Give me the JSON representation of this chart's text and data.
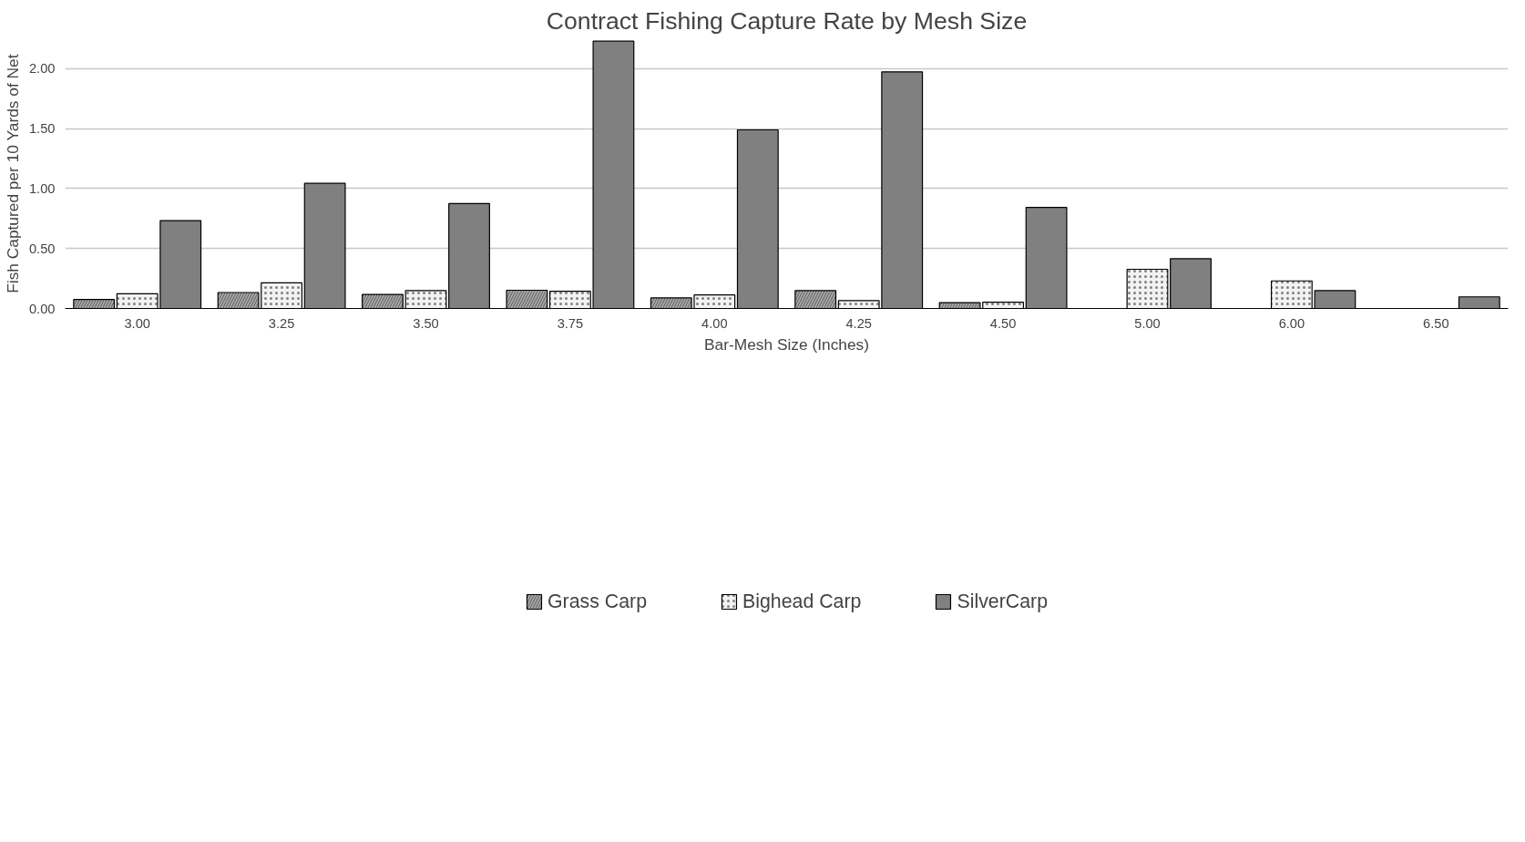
{
  "chart_data": {
    "type": "bar",
    "title": "Contract Fishing Capture Rate by Mesh Size",
    "xlabel": "Bar-Mesh Size (Inches)",
    "ylabel": "Fish Captured per 10 Yards of Net",
    "categories": [
      "3.00",
      "3.25",
      "3.50",
      "3.75",
      "4.00",
      "4.25",
      "4.50",
      "5.00",
      "6.00",
      "6.50"
    ],
    "series": [
      {
        "name": "Grass Carp",
        "color": "#a6a6a6",
        "values": [
          0.075,
          0.133,
          0.117,
          0.152,
          0.088,
          0.149,
          0.049,
          null,
          null,
          null
        ]
      },
      {
        "name": "Bighead Carp",
        "color": "#f2f2f2",
        "values": [
          0.123,
          0.214,
          0.149,
          0.143,
          0.113,
          0.065,
          0.052,
          0.327,
          0.23,
          null
        ]
      },
      {
        "name": "SilverCarp",
        "color": "#808080",
        "values": [
          0.733,
          1.044,
          0.875,
          2.23,
          1.49,
          1.974,
          0.843,
          0.415,
          0.149,
          0.097
        ]
      }
    ],
    "ylim": [
      0,
      2.25
    ],
    "yticks": [
      {
        "value": 0,
        "label": "0.00"
      },
      {
        "value": 0.5,
        "label": "0.50"
      },
      {
        "value": 1,
        "label": "1.00"
      },
      {
        "value": 1.5,
        "label": "1.50"
      },
      {
        "value": 2,
        "label": "2.00"
      }
    ],
    "grid": "y",
    "legend": "bottom"
  }
}
